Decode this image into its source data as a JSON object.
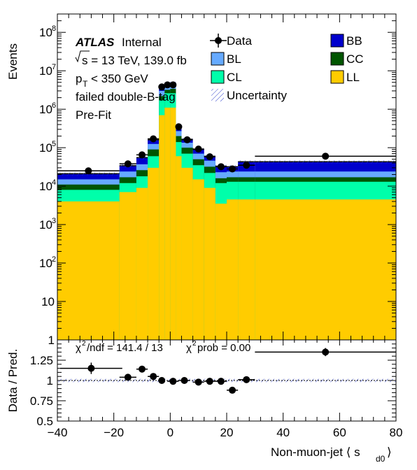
{
  "colors": {
    "BB": "#0000cc",
    "CC": "#005500",
    "CL": "#00ffaa",
    "BL": "#66aaff",
    "LL": "#ffcc00",
    "data": "#000000",
    "ratio_ref": "#000000"
  },
  "chart_data": [
    {
      "type": "bar",
      "stacked": true,
      "log_y": true,
      "ylabel": "Events",
      "ylim": [
        1,
        300000000
      ],
      "y_ticks": [
        {
          "v": 1,
          "label": "1"
        },
        {
          "v": 10,
          "label": "10"
        },
        {
          "v": 100,
          "label": "10",
          "exp": "2"
        },
        {
          "v": 1000,
          "label": "10",
          "exp": "3"
        },
        {
          "v": 10000,
          "label": "10",
          "exp": "4"
        },
        {
          "v": 100000,
          "label": "10",
          "exp": "5"
        },
        {
          "v": 1000000,
          "label": "10",
          "exp": "6"
        },
        {
          "v": 10000000,
          "label": "10",
          "exp": "7"
        },
        {
          "v": 100000000,
          "label": "10",
          "exp": "8"
        }
      ],
      "bin_edges": [
        -40,
        -18,
        -12,
        -8,
        -4,
        -2,
        0,
        2,
        4,
        8,
        12,
        16,
        20,
        24,
        30,
        80
      ],
      "series": [
        {
          "name": "LL",
          "values": [
            4000,
            7000,
            9000,
            30000,
            700000,
            1100000,
            1100000,
            60000,
            30000,
            15000,
            9000,
            3500,
            4500,
            4500,
            4500
          ]
        },
        {
          "name": "CL",
          "values": [
            8000,
            12000,
            18000,
            60000,
            1700000,
            2600000,
            2600000,
            140000,
            70000,
            35000,
            22000,
            12000,
            13000,
            13000,
            13000
          ]
        },
        {
          "name": "CC",
          "values": [
            11000,
            17000,
            26000,
            90000,
            2200000,
            3200000,
            3400000,
            200000,
            100000,
            50000,
            32000,
            16000,
            17000,
            17000,
            17000
          ]
        },
        {
          "name": "BL",
          "values": [
            15000,
            24000,
            37000,
            125000,
            3000000,
            4200000,
            4300000,
            270000,
            135000,
            70000,
            46000,
            23000,
            24000,
            24000,
            24000
          ]
        },
        {
          "name": "BB",
          "values": [
            21000,
            34000,
            55000,
            160000,
            3700000,
            4600000,
            4800000,
            340000,
            165000,
            90000,
            60000,
            33000,
            32000,
            43000,
            43000
          ]
        }
      ],
      "data_points": {
        "name": "Data",
        "x": [
          -29,
          -15,
          -10,
          -6,
          -3,
          -1,
          1,
          3,
          6,
          10,
          14,
          18,
          22,
          27,
          55
        ],
        "xerr_lo": [
          11,
          3,
          2,
          2,
          1,
          1,
          1,
          1,
          2,
          2,
          2,
          2,
          2,
          3,
          25
        ],
        "xerr_hi": [
          11,
          3,
          2,
          2,
          1,
          1,
          1,
          1,
          2,
          2,
          2,
          2,
          2,
          3,
          25
        ],
        "y": [
          25000,
          38000,
          65000,
          170000,
          3800000,
          4300000,
          4300000,
          350000,
          160000,
          92000,
          58000,
          32000,
          28000,
          35000,
          60000
        ]
      },
      "legend_placement": "top",
      "legend": [
        "Data",
        "BL",
        "CL",
        "Uncertainty",
        "BB",
        "CC",
        "LL"
      ],
      "annotations": {
        "atlas": "ATLAS",
        "internal": "Internal",
        "sqrt_s": "s = 13 TeV, 139.0 fb",
        "pt_cut": "< 350 GeV",
        "pt_label": "p",
        "pt_sub": "T",
        "tag": "failed double-B-tag",
        "fit": "Pre-Fit"
      }
    },
    {
      "type": "scatter",
      "ylabel": "Data / Pred.",
      "ylim": [
        0.5,
        1.5
      ],
      "y_ticks": [
        "0.5",
        "0.75",
        "1",
        "1.25"
      ],
      "xlim": [
        -40,
        80
      ],
      "x_ticks": [
        "−40",
        "−20",
        "0",
        "20",
        "40",
        "60",
        "80"
      ],
      "xlabel": "Non-muon-jet  ⟨ s",
      "xlabel_sub": "d0",
      "xlabel_end": " ⟩",
      "chi2_text": "/ndf = 141.4 / 13",
      "chi2_prob_text": "prob = 0.00",
      "chi2_symbol": "χ",
      "chi2_exp": "2",
      "ratio": {
        "x": [
          -28,
          -15,
          -10,
          -6,
          -3,
          1,
          5,
          10,
          14,
          18,
          22,
          27,
          55
        ],
        "xerr": [
          11,
          3,
          2,
          2,
          1,
          2,
          2,
          2,
          2,
          2,
          2,
          3,
          25
        ],
        "y": [
          1.15,
          1.04,
          1.14,
          1.05,
          1.0,
          0.99,
          1.0,
          0.98,
          0.99,
          0.99,
          0.88,
          1.01,
          1.35
        ],
        "yerr": [
          0.07,
          0.04,
          0.04,
          0.03,
          0.015,
          0.015,
          0.015,
          0.02,
          0.02,
          0.03,
          0.04,
          0.04,
          0.05
        ]
      }
    }
  ]
}
